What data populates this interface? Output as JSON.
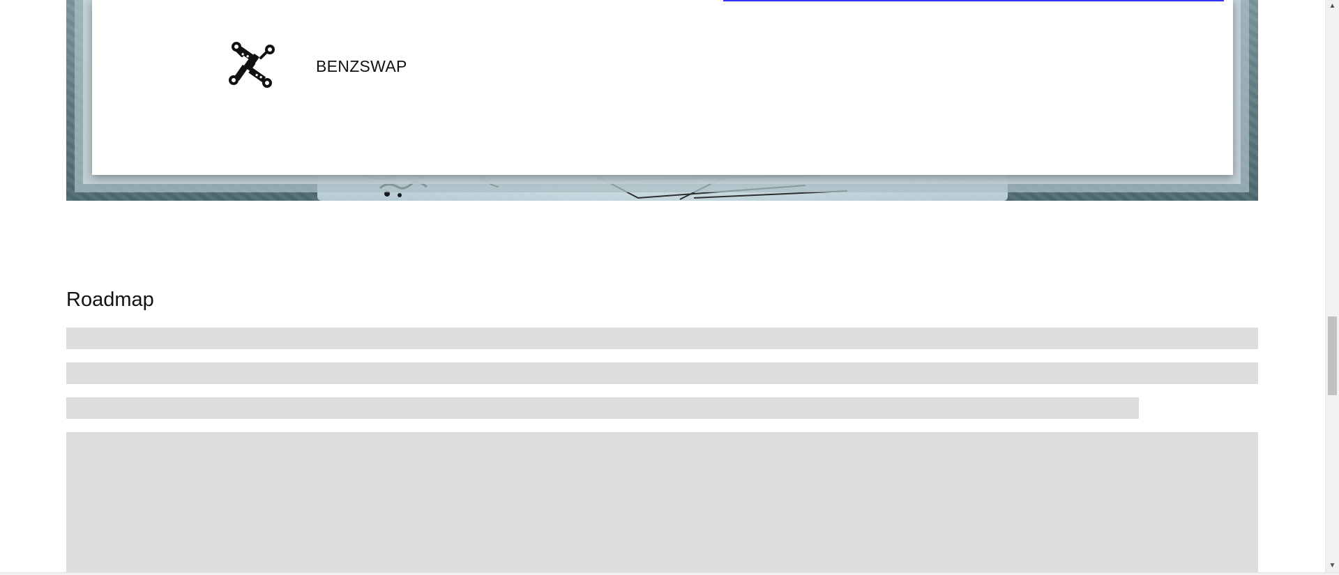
{
  "hero": {
    "brand_name": "BENZSWAP",
    "logo_icon": "benzswap-logo-icon"
  },
  "roadmap": {
    "title": "Roadmap"
  },
  "colors": {
    "accent_link": "#3333ff",
    "skeleton": "#dddddd",
    "hero_backdrop": "#5f7a81"
  },
  "scrollbar": {
    "up_icon": "scroll-up-arrow-icon",
    "down_icon": "scroll-down-arrow-icon"
  }
}
